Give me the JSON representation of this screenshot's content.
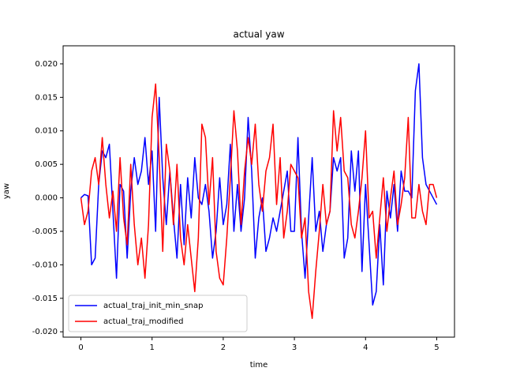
{
  "chart_data": {
    "type": "line",
    "title": "actual yaw",
    "x_label": "time",
    "y_label": "yaw",
    "x": [
      0,
      0.05,
      0.1,
      0.15,
      0.2,
      0.25,
      0.3,
      0.35,
      0.4,
      0.45,
      0.5,
      0.55,
      0.6,
      0.65,
      0.7,
      0.75,
      0.8,
      0.85,
      0.9,
      0.95,
      1.0,
      1.05,
      1.1,
      1.15,
      1.2,
      1.25,
      1.3,
      1.35,
      1.4,
      1.45,
      1.5,
      1.55,
      1.6,
      1.65,
      1.7,
      1.75,
      1.8,
      1.85,
      1.9,
      1.95,
      2.0,
      2.05,
      2.1,
      2.15,
      2.2,
      2.25,
      2.3,
      2.35,
      2.4,
      2.45,
      2.5,
      2.55,
      2.6,
      2.65,
      2.7,
      2.75,
      2.8,
      2.85,
      2.9,
      2.95,
      3.0,
      3.05,
      3.1,
      3.15,
      3.2,
      3.25,
      3.3,
      3.35,
      3.4,
      3.45,
      3.5,
      3.55,
      3.6,
      3.65,
      3.7,
      3.75,
      3.8,
      3.85,
      3.9,
      3.95,
      4.0,
      4.05,
      4.1,
      4.15,
      4.2,
      4.25,
      4.3,
      4.35,
      4.4,
      4.45,
      4.5,
      4.55,
      4.6,
      4.65,
      4.7,
      4.75,
      4.8,
      4.85,
      4.9,
      4.95,
      5.0
    ],
    "series": [
      {
        "name": "actual_traj_init_min_snap",
        "color": "#0000ff",
        "values": [
          0,
          0.0005,
          0.0003,
          -0.01,
          -0.009,
          0.002,
          0.007,
          0.006,
          0.008,
          -0.002,
          -0.012,
          0.002,
          0.001,
          -0.009,
          0.001,
          0.006,
          0.002,
          0.004,
          0.009,
          0.002,
          0.007,
          -0.005,
          0.015,
          0.003,
          -0.004,
          0.004,
          -0.003,
          -0.009,
          0.002,
          -0.007,
          0.003,
          -0.003,
          0.006,
          0.0,
          -0.001,
          0.002,
          -0.002,
          -0.009,
          -0.005,
          0.003,
          -0.004,
          -0.001,
          0.008,
          -0.005,
          0.002,
          -0.005,
          0.0,
          0.012,
          0.004,
          -0.009,
          -0.003,
          0.0,
          -0.008,
          -0.006,
          -0.003,
          -0.005,
          -0.002,
          0.001,
          0.004,
          -0.005,
          -0.005,
          0.009,
          -0.005,
          -0.012,
          -0.003,
          0.006,
          -0.005,
          -0.002,
          -0.008,
          -0.004,
          -0.002,
          0.006,
          0.004,
          0.006,
          -0.009,
          -0.006,
          0.007,
          0.001,
          0.007,
          -0.011,
          0.002,
          -0.007,
          -0.016,
          -0.014,
          -0.004,
          -0.013,
          0.001,
          -0.003,
          0.002,
          -0.005,
          0.004,
          0.001,
          0.001,
          0.0,
          0.016,
          0.02,
          0.006,
          0.002,
          0.001,
          0.0,
          -0.001
        ]
      },
      {
        "name": "actual_traj_modified",
        "color": "#ff0000",
        "values": [
          0,
          -0.004,
          -0.002,
          0.004,
          0.006,
          0.002,
          0.009,
          0.002,
          -0.003,
          0.001,
          -0.005,
          0.006,
          -0.003,
          -0.007,
          0.005,
          -0.004,
          -0.01,
          -0.006,
          -0.012,
          -0.004,
          0.012,
          0.017,
          0.006,
          -0.008,
          0.008,
          0.004,
          -0.004,
          0.005,
          -0.006,
          -0.01,
          -0.004,
          -0.009,
          -0.014,
          -0.006,
          0.011,
          0.009,
          -0.001,
          0.006,
          -0.008,
          -0.012,
          -0.013,
          -0.006,
          0.003,
          0.013,
          0.007,
          -0.004,
          0.004,
          0.009,
          0.005,
          0.011,
          0.002,
          -0.002,
          0.004,
          0.006,
          0.011,
          -0.001,
          0.006,
          -0.006,
          -0.002,
          0.005,
          0.004,
          0.003,
          -0.006,
          -0.003,
          -0.014,
          -0.018,
          -0.011,
          -0.005,
          0.002,
          -0.004,
          -0.002,
          0.013,
          0.007,
          0.012,
          0.004,
          0.003,
          -0.004,
          -0.006,
          -0.002,
          0.003,
          0.01,
          -0.003,
          -0.002,
          -0.009,
          -0.003,
          0.003,
          -0.005,
          0.0,
          0.004,
          -0.004,
          -0.001,
          0.003,
          0.012,
          -0.003,
          -0.003,
          0.002,
          -0.002,
          -0.004,
          0.002,
          0.002,
          0.0
        ]
      }
    ],
    "xlim": [
      -0.25,
      5.25
    ],
    "ylim": [
      -0.0208,
      0.0227
    ],
    "xticks": [
      0,
      1,
      2,
      3,
      4,
      5
    ],
    "yticks": [
      {
        "value": -0.02,
        "label": "-0.020"
      },
      {
        "value": -0.015,
        "label": "-0.015"
      },
      {
        "value": -0.01,
        "label": "-0.010"
      },
      {
        "value": -0.005,
        "label": "-0.005"
      },
      {
        "value": 0,
        "label": "0.000"
      },
      {
        "value": 0.005,
        "label": "0.005"
      },
      {
        "value": 0.01,
        "label": "0.010"
      },
      {
        "value": 0.015,
        "label": "0.015"
      },
      {
        "value": 0.02,
        "label": "0.020"
      }
    ],
    "legend": "lower left",
    "grid": false
  }
}
